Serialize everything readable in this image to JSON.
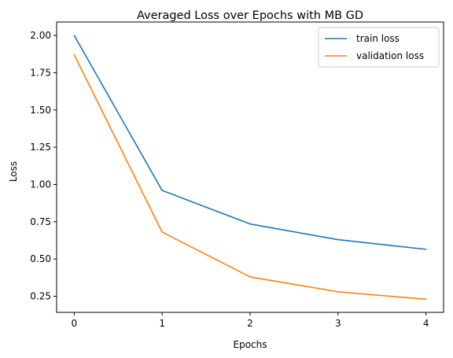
{
  "chart_data": {
    "type": "line",
    "title": "Averaged Loss over Epochs with MB GD",
    "xlabel": "Epochs",
    "ylabel": "Loss",
    "x": [
      0,
      1,
      2,
      3,
      4
    ],
    "xticks": [
      0,
      1,
      2,
      3,
      4
    ],
    "xtick_labels": [
      "0",
      "1",
      "2",
      "3",
      "4"
    ],
    "yticks": [
      0.25,
      0.5,
      0.75,
      1.0,
      1.25,
      1.5,
      1.75,
      2.0
    ],
    "ytick_labels": [
      "0.25",
      "0.50",
      "0.75",
      "1.00",
      "1.25",
      "1.50",
      "1.75",
      "2.00"
    ],
    "xlim": [
      -0.2,
      4.2
    ],
    "ylim": [
      0.142,
      2.09
    ],
    "grid": false,
    "legend_position": "top-right",
    "series": [
      {
        "name": "train loss",
        "color": "#1f77b4",
        "values": [
          2.0,
          0.96,
          0.735,
          0.63,
          0.565
        ]
      },
      {
        "name": "validation loss",
        "color": "#ff7f0e",
        "values": [
          1.87,
          0.68,
          0.38,
          0.28,
          0.23
        ]
      }
    ]
  }
}
